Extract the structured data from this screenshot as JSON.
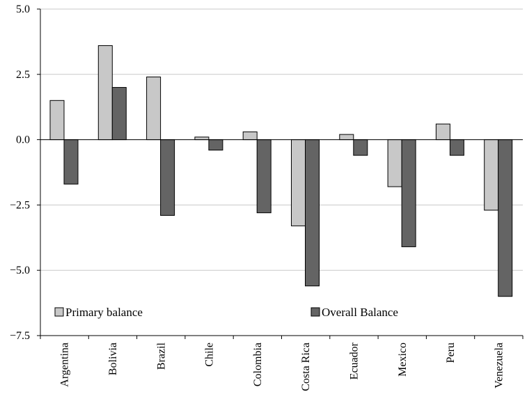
{
  "chart_data": {
    "type": "bar",
    "categories": [
      "Argentina",
      "Bolivia",
      "Brazil",
      "Chile",
      "Colombia",
      "Costa Rica",
      "Ecuador",
      "Mexico",
      "Peru",
      "Venezuela"
    ],
    "series": [
      {
        "name": "Primary balance",
        "color": "#c8c8c8",
        "values": [
          1.5,
          3.6,
          2.4,
          0.1,
          0.3,
          -3.3,
          0.2,
          -1.8,
          0.6,
          -2.7
        ]
      },
      {
        "name": "Overall Balance",
        "color": "#646464",
        "values": [
          -1.7,
          2.0,
          -2.9,
          -0.4,
          -2.8,
          -5.6,
          -0.6,
          -4.1,
          -0.6,
          -6.0
        ]
      }
    ],
    "yticks": [
      "5.0",
      "2.5",
      "0.0",
      "−2.5",
      "−5.0",
      "−7.5"
    ],
    "ylim": [
      -7.5,
      5.0
    ],
    "ytick_values": [
      5.0,
      2.5,
      0.0,
      -2.5,
      -5.0,
      -7.5
    ],
    "grid": true,
    "legend_position": "bottom-inside",
    "title": "",
    "xlabel": "",
    "ylabel": ""
  }
}
